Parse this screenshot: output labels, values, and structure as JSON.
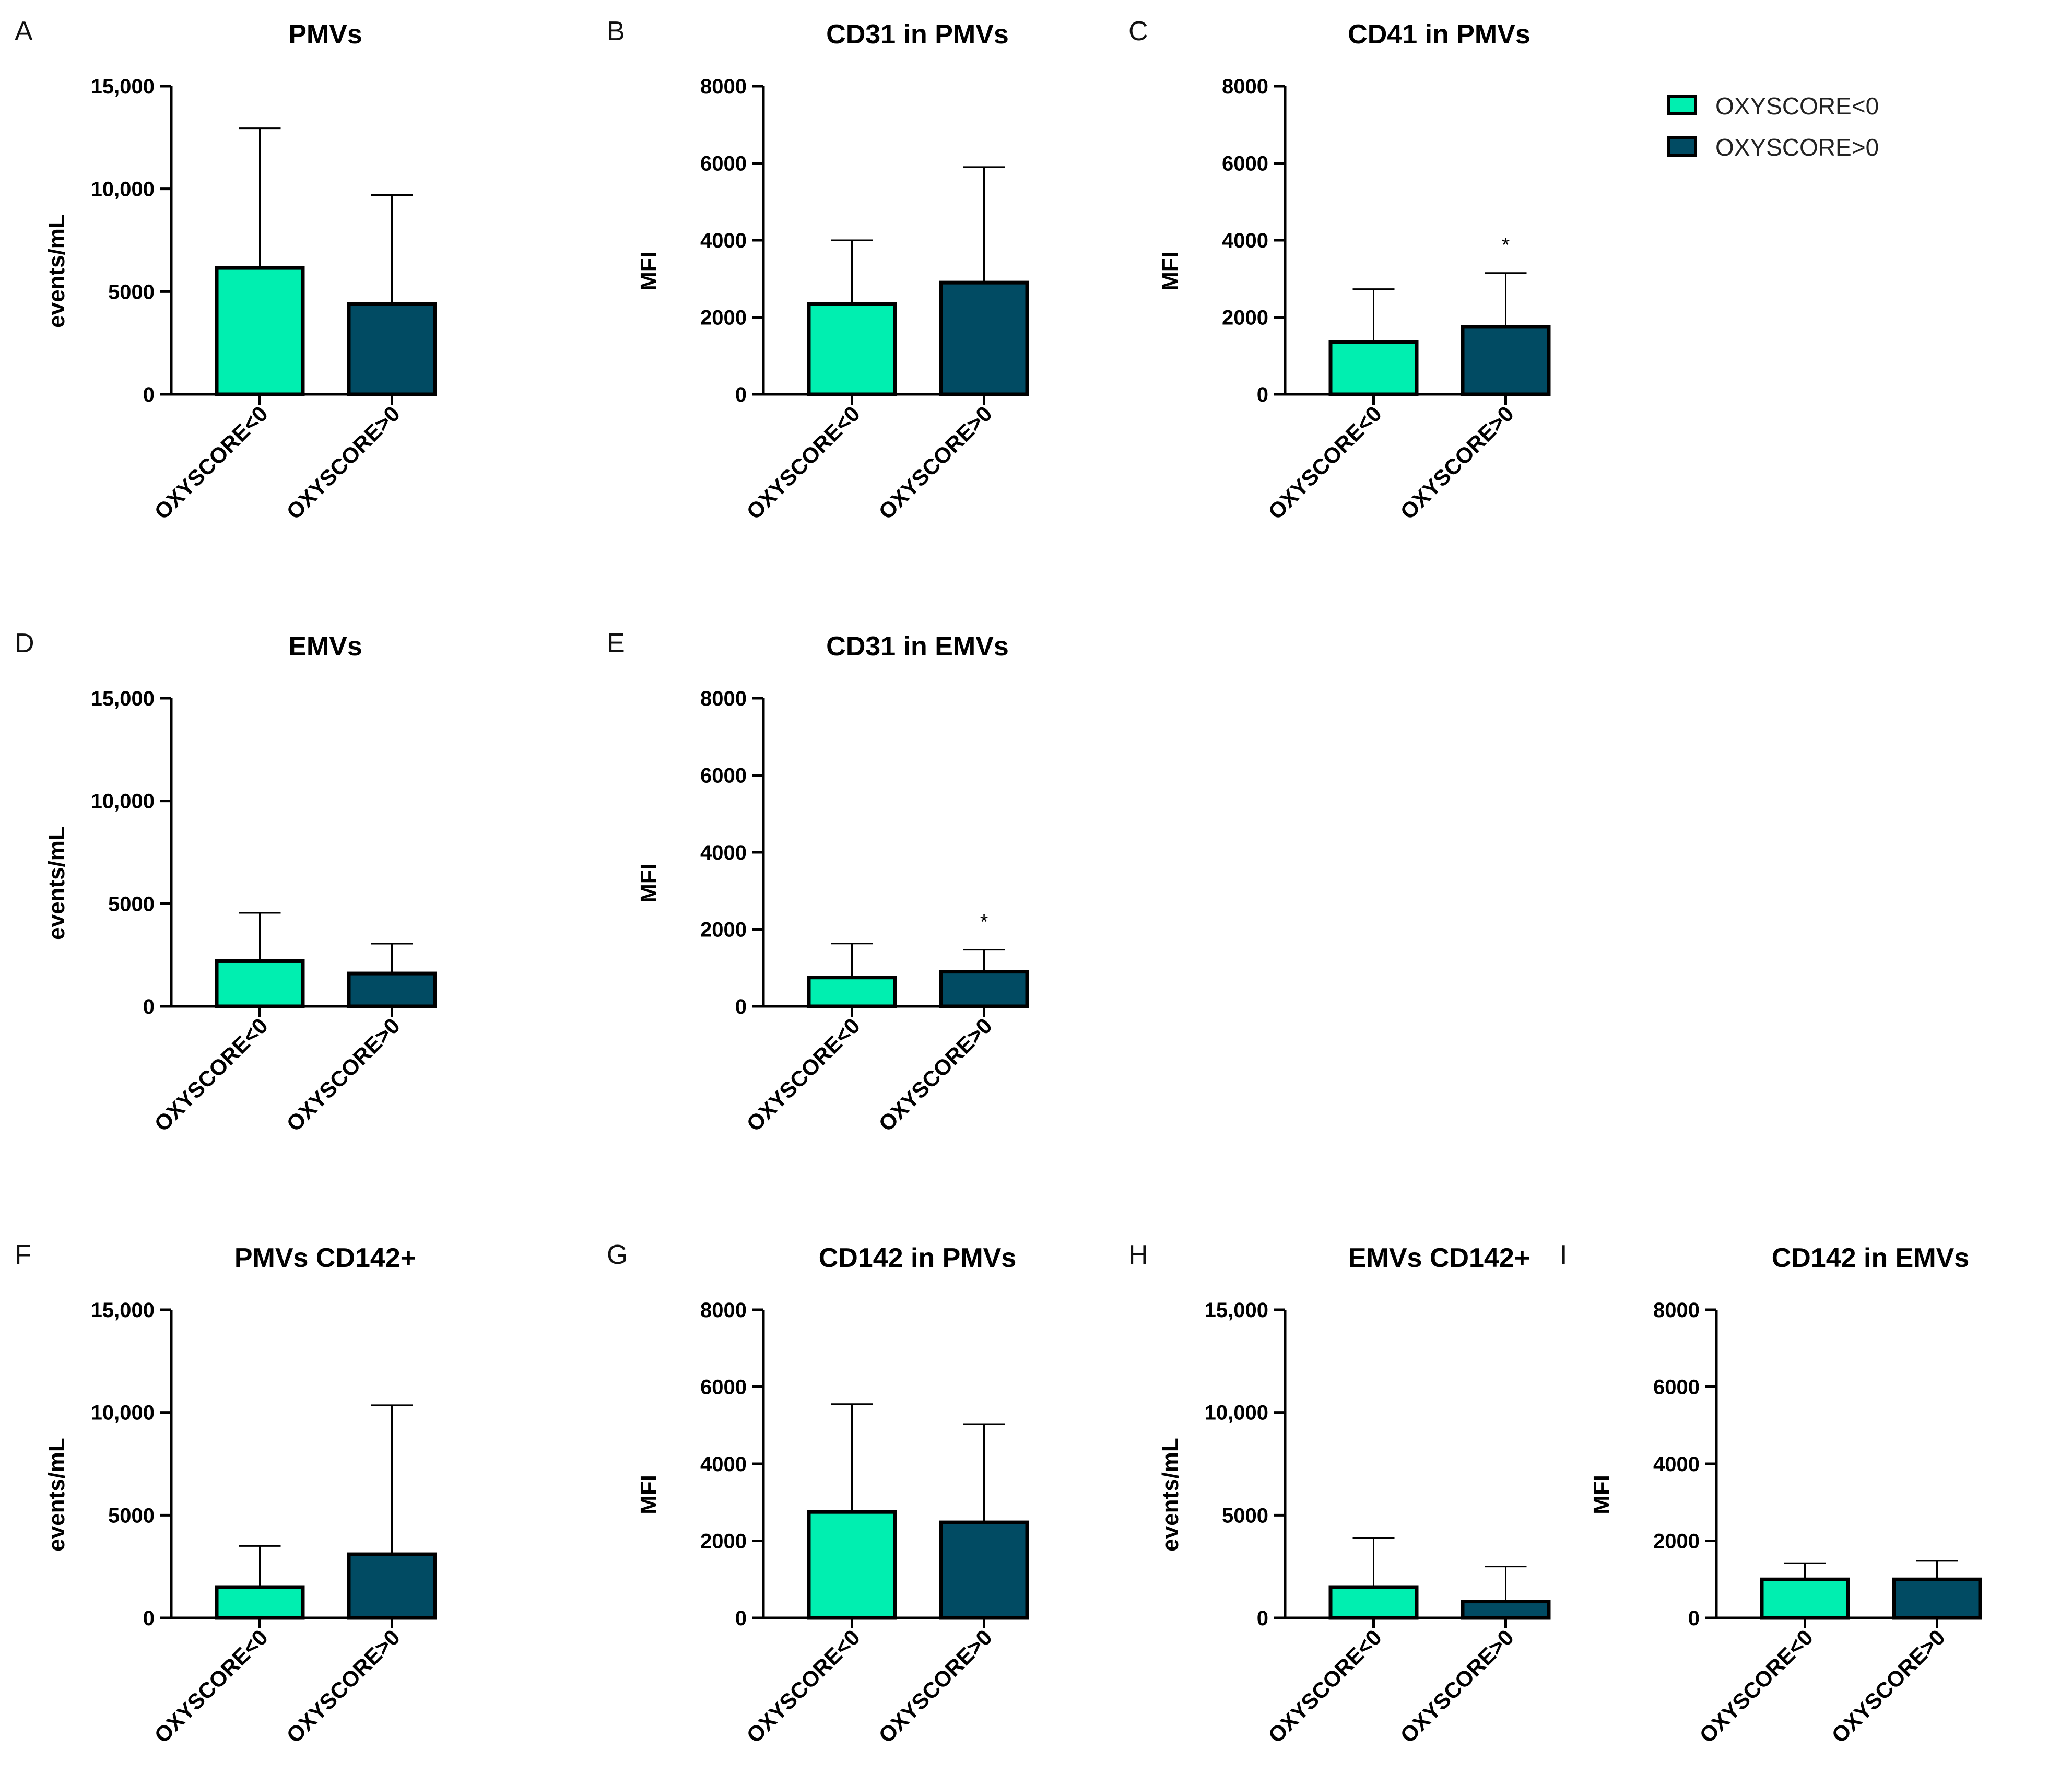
{
  "colors": {
    "low": "#00EFB0",
    "high": "#014B63"
  },
  "legend": [
    {
      "label": "OXYSCORE<0",
      "color_key": "low"
    },
    {
      "label": "OXYSCORE>0",
      "color_key": "high"
    }
  ],
  "chart_data": [
    {
      "panel": "A",
      "title": "PMVs",
      "type": "bar",
      "ylabel": "events/mL",
      "ylim": [
        0,
        15000
      ],
      "yticks": [
        0,
        5000,
        10000,
        15000
      ],
      "ytick_labels": [
        "0",
        "5000",
        "10,000",
        "15,000"
      ],
      "categories": [
        "OXYSCORE<0",
        "OXYSCORE>0"
      ],
      "values": [
        6150,
        4400
      ],
      "errors": [
        6800,
        5300
      ],
      "significance": [
        "",
        ""
      ]
    },
    {
      "panel": "B",
      "title": "CD31 in PMVs",
      "type": "bar",
      "ylabel": "MFI",
      "ylim": [
        0,
        8000
      ],
      "yticks": [
        0,
        2000,
        4000,
        6000,
        8000
      ],
      "ytick_labels": [
        "0",
        "2000",
        "4000",
        "6000",
        "8000"
      ],
      "categories": [
        "OXYSCORE<0",
        "OXYSCORE>0"
      ],
      "values": [
        2350,
        2900
      ],
      "errors": [
        1650,
        3000
      ],
      "significance": [
        "",
        ""
      ]
    },
    {
      "panel": "C",
      "title": "CD41 in PMVs",
      "type": "bar",
      "ylabel": "MFI",
      "ylim": [
        0,
        8000
      ],
      "yticks": [
        0,
        2000,
        4000,
        6000,
        8000
      ],
      "ytick_labels": [
        "0",
        "2000",
        "4000",
        "6000",
        "8000"
      ],
      "categories": [
        "OXYSCORE<0",
        "OXYSCORE>0"
      ],
      "values": [
        1350,
        1750
      ],
      "errors": [
        1380,
        1400
      ],
      "significance": [
        "",
        "*"
      ]
    },
    {
      "panel": "D",
      "title": "EMVs",
      "type": "bar",
      "ylabel": "events/mL",
      "ylim": [
        0,
        15000
      ],
      "yticks": [
        0,
        5000,
        10000,
        15000
      ],
      "ytick_labels": [
        "0",
        "5000",
        "10,000",
        "15,000"
      ],
      "categories": [
        "OXYSCORE<0",
        "OXYSCORE>0"
      ],
      "values": [
        2200,
        1600
      ],
      "errors": [
        2350,
        1450
      ],
      "significance": [
        "",
        ""
      ]
    },
    {
      "panel": "E",
      "title": "CD31 in EMVs",
      "type": "bar",
      "ylabel": "MFI",
      "ylim": [
        0,
        8000
      ],
      "yticks": [
        0,
        2000,
        4000,
        6000,
        8000
      ],
      "ytick_labels": [
        "0",
        "2000",
        "4000",
        "6000",
        "8000"
      ],
      "categories": [
        "OXYSCORE<0",
        "OXYSCORE>0"
      ],
      "values": [
        750,
        900
      ],
      "errors": [
        880,
        570
      ],
      "significance": [
        "",
        "*"
      ]
    },
    {
      "panel": "F",
      "title": "PMVs CD142+",
      "type": "bar",
      "ylabel": "events/mL",
      "ylim": [
        0,
        15000
      ],
      "yticks": [
        0,
        5000,
        10000,
        15000
      ],
      "ytick_labels": [
        "0",
        "5000",
        "10,000",
        "15,000"
      ],
      "categories": [
        "OXYSCORE<0",
        "OXYSCORE>0"
      ],
      "values": [
        1500,
        3100
      ],
      "errors": [
        2000,
        7250
      ],
      "significance": [
        "",
        ""
      ]
    },
    {
      "panel": "G",
      "title": "CD142 in PMVs",
      "type": "bar",
      "ylabel": "MFI",
      "ylim": [
        0,
        8000
      ],
      "yticks": [
        0,
        2000,
        4000,
        6000,
        8000
      ],
      "ytick_labels": [
        "0",
        "2000",
        "4000",
        "6000",
        "8000"
      ],
      "categories": [
        "OXYSCORE<0",
        "OXYSCORE>0"
      ],
      "values": [
        2750,
        2480
      ],
      "errors": [
        2800,
        2550
      ],
      "significance": [
        "",
        ""
      ]
    },
    {
      "panel": "H",
      "title": "EMVs CD142+",
      "type": "bar",
      "ylabel": "events/mL",
      "ylim": [
        0,
        15000
      ],
      "yticks": [
        0,
        5000,
        10000,
        15000
      ],
      "ytick_labels": [
        "0",
        "5000",
        "10,000",
        "15,000"
      ],
      "categories": [
        "OXYSCORE<0",
        "OXYSCORE>0"
      ],
      "values": [
        1500,
        800
      ],
      "errors": [
        2400,
        1700
      ],
      "significance": [
        "",
        ""
      ]
    },
    {
      "panel": "I",
      "title": "CD142 in EMVs",
      "type": "bar",
      "ylabel": "MFI",
      "ylim": [
        0,
        8000
      ],
      "yticks": [
        0,
        2000,
        4000,
        6000,
        8000
      ],
      "ytick_labels": [
        "0",
        "2000",
        "4000",
        "6000",
        "8000"
      ],
      "categories": [
        "OXYSCORE<0",
        "OXYSCORE>0"
      ],
      "values": [
        1000,
        1000
      ],
      "errors": [
        420,
        480
      ],
      "significance": [
        "",
        ""
      ]
    }
  ]
}
